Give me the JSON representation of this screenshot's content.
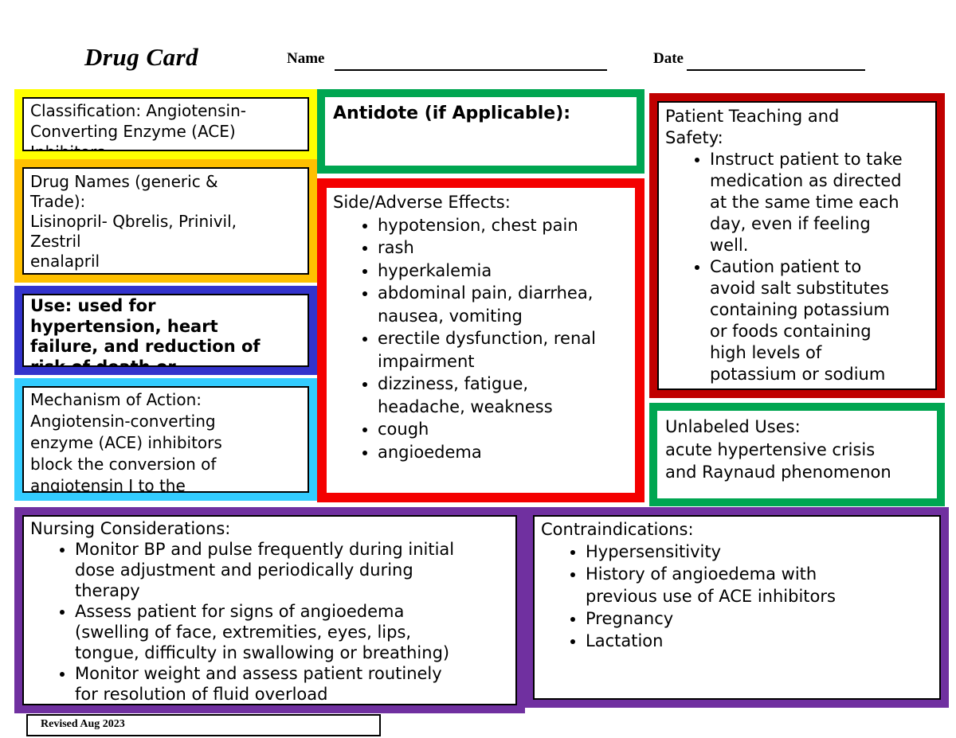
{
  "header": {
    "title": "Drug Card",
    "name_label": "Name",
    "date_label": "Date"
  },
  "cards": {
    "classification": {
      "text": "Classification: Angiotensin-\nConverting Enzyme (ACE)\nInhibitors"
    },
    "drug_names": {
      "text": "Drug Names (generic &\nTrade):\nLisinopril- Qbrelis, Prinivil,\nZestril\nenalapril"
    },
    "use": {
      "text": "Use: used for\nhypertension, heart\nfailure, and reduction of\nrisk of death or"
    },
    "mechanism": {
      "text": "Mechanism of Action:\nAngiotensin-converting\nenzyme (ACE) inhibitors\nblock the conversion of\nangiotensin I to the"
    },
    "antidote": {
      "title": "Antidote (if Applicable):"
    },
    "side_effects": {
      "title": "Side/Adverse Effects:",
      "bullets": [
        "hypotension, chest pain",
        "rash",
        "hyperkalemia",
        "abdominal pain, diarrhea,\nnausea, vomiting",
        "erectile dysfunction, renal\nimpairment",
        "dizziness, fatigue,\nheadache, weakness",
        "cough",
        "angioedema"
      ]
    },
    "patient_teaching": {
      "title": "Patient Teaching and\nSafety:",
      "bullets": [
        "Instruct patient to take\nmedication as directed\nat the same time each\nday, even if feeling\nwell.",
        "Caution patient to\navoid salt substitutes\ncontaining potassium\nor foods containing\nhigh levels of\npotassium or sodium"
      ]
    },
    "unlabeled_uses": {
      "text": "Unlabeled Uses:\nacute hypertensive crisis\nand Raynaud phenomenon"
    },
    "nursing_considerations": {
      "title": "Nursing Considerations:",
      "bullets": [
        "Monitor BP and pulse frequently during initial\ndose adjustment and periodically during\ntherapy",
        "Assess patient for signs of angioedema\n(swelling of face, extremities, eyes, lips,\ntongue, difficulty in swallowing or breathing)",
        "Monitor weight and assess patient routinely\nfor resolution of fluid overload"
      ]
    },
    "contraindications": {
      "title": "Contraindications:",
      "bullets": [
        "Hypersensitivity",
        "History of angioedema with\nprevious use of ACE inhibitors",
        "Pregnancy",
        "Lactation"
      ]
    }
  },
  "footer": {
    "revised": "Revised Aug 2023"
  },
  "colors": {
    "yellow": "#ffff00",
    "orange": "#ffc000",
    "blue": "#3333cc",
    "cyan": "#33ccff",
    "green": "#00a651",
    "red": "#f40000",
    "dark_red": "#c00000",
    "purple": "#7030a0",
    "ink": "#000000",
    "paper": "#ffffff"
  }
}
